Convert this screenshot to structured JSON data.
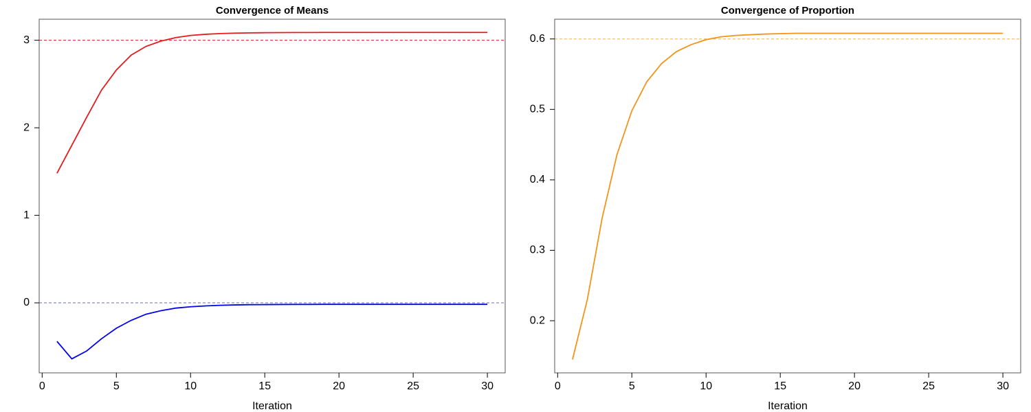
{
  "chart_data": [
    {
      "type": "line",
      "title": "Convergence of Means",
      "xlabel": "Iteration",
      "x": [
        1,
        2,
        3,
        4,
        5,
        6,
        7,
        8,
        9,
        10,
        11,
        12,
        13,
        14,
        15,
        16,
        17,
        18,
        19,
        20,
        21,
        22,
        23,
        24,
        25,
        26,
        27,
        28,
        29,
        30
      ],
      "series": [
        {
          "color": "#e41a1c",
          "values": [
            1.48,
            1.8,
            2.12,
            2.43,
            2.66,
            2.83,
            2.93,
            2.99,
            3.03,
            3.055,
            3.068,
            3.076,
            3.081,
            3.084,
            3.086,
            3.087,
            3.088,
            3.088,
            3.089,
            3.089,
            3.089,
            3.089,
            3.089,
            3.089,
            3.089,
            3.089,
            3.089,
            3.089,
            3.089,
            3.089
          ]
        },
        {
          "color": "#0000ee",
          "values": [
            -0.44,
            -0.64,
            -0.55,
            -0.41,
            -0.29,
            -0.2,
            -0.13,
            -0.09,
            -0.06,
            -0.045,
            -0.035,
            -0.028,
            -0.024,
            -0.021,
            -0.02,
            -0.019,
            -0.018,
            -0.018,
            -0.017,
            -0.017,
            -0.017,
            -0.017,
            -0.017,
            -0.017,
            -0.017,
            -0.017,
            -0.017,
            -0.017,
            -0.017,
            -0.017
          ]
        }
      ],
      "hlines": [
        {
          "value": 3,
          "color": "#e41a1c"
        },
        {
          "value": 0,
          "color": "#6a6aaa"
        }
      ],
      "xlim": [
        -0.2,
        31.2
      ],
      "xticks": [
        0,
        5,
        10,
        15,
        20,
        25,
        30
      ],
      "ylim": [
        -0.8,
        3.24
      ],
      "yticks": [
        0,
        1,
        2,
        3
      ]
    },
    {
      "type": "line",
      "title": "Convergence of Proportion",
      "xlabel": "Iteration",
      "x": [
        1,
        2,
        3,
        4,
        5,
        6,
        7,
        8,
        9,
        10,
        11,
        12,
        13,
        14,
        15,
        16,
        17,
        18,
        19,
        20,
        21,
        22,
        23,
        24,
        25,
        26,
        27,
        28,
        29,
        30
      ],
      "series": [
        {
          "color": "#f29418",
          "values": [
            0.145,
            0.23,
            0.346,
            0.436,
            0.498,
            0.539,
            0.565,
            0.582,
            0.592,
            0.599,
            0.603,
            0.605,
            0.606,
            0.607,
            0.6075,
            0.608,
            0.608,
            0.608,
            0.608,
            0.608,
            0.608,
            0.608,
            0.608,
            0.608,
            0.608,
            0.608,
            0.608,
            0.608,
            0.608,
            0.608
          ]
        }
      ],
      "hlines": [
        {
          "value": 0.6,
          "color": "#f2b04a"
        }
      ],
      "xlim": [
        -0.2,
        31.2
      ],
      "xticks": [
        0,
        5,
        10,
        15,
        20,
        25,
        30
      ],
      "ylim": [
        0.126,
        0.628
      ],
      "yticks": [
        0.2,
        0.3,
        0.4,
        0.5,
        0.6
      ]
    }
  ]
}
